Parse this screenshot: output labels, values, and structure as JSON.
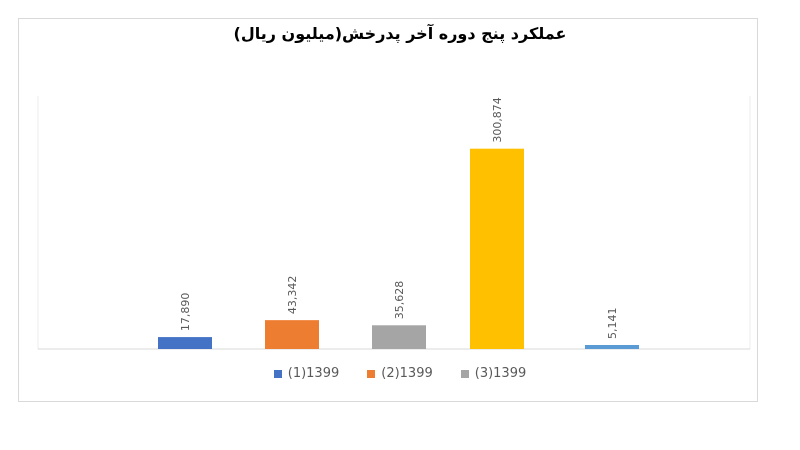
{
  "chart_data": {
    "type": "bar",
    "title": "عملکرد پنج دوره آخر پدرخش(میلیون ریال)",
    "values": [
      17890,
      43342,
      35628,
      300874,
      5141
    ],
    "labels": [
      "17,890",
      "43,342",
      "35,628",
      "300,874",
      "5,141"
    ],
    "colors": [
      "#4472C4",
      "#ED7D31",
      "#A5A5A5",
      "#FFC000",
      "#5B9BD5"
    ],
    "ylim": [
      0,
      380000
    ],
    "legend": [
      {
        "label": "(1)1399",
        "color": "#4472C4"
      },
      {
        "label": "(2)1399",
        "color": "#ED7D31"
      },
      {
        "label": "(3)1399",
        "color": "#A5A5A5"
      }
    ],
    "legend_position": "bottom"
  }
}
